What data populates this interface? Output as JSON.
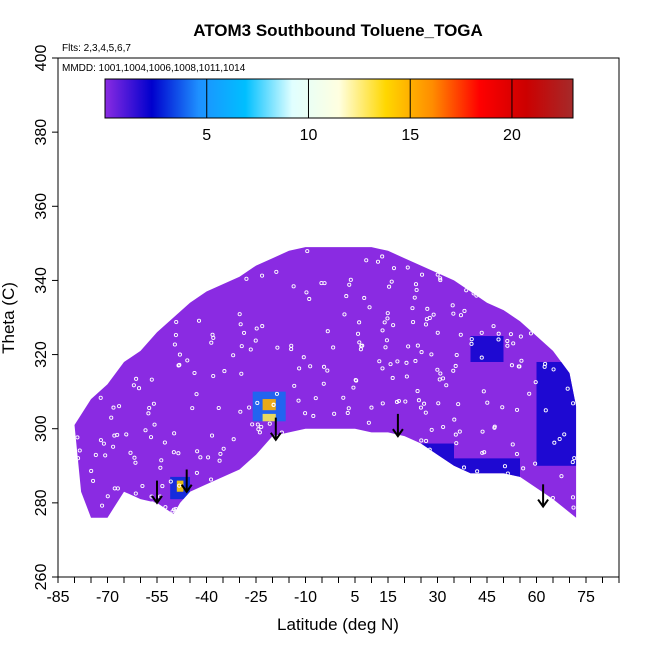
{
  "chart_data": {
    "type": "heatmap",
    "title": "ATOM3 Southbound Toluene_TOGA",
    "annotations": [
      "Flts: 2,3,4,5,6,7",
      "MMDD: 1001,1004,1006,1008,1011,1014"
    ],
    "xlabel": "Latitude (deg N)",
    "ylabel": "Theta (C)",
    "xlim": [
      -85,
      85
    ],
    "ylim": [
      260,
      400
    ],
    "x_tick_labels": [
      "-85",
      "-70",
      "-55",
      "-40",
      "-25",
      "-10",
      "5",
      "15",
      "30",
      "45",
      "60",
      "75"
    ],
    "y_tick_labels": [
      "260",
      "280",
      "300",
      "320",
      "340",
      "360",
      "380",
      "400"
    ],
    "colorbar": {
      "range": [
        0,
        23
      ],
      "tick_labels": [
        "5",
        "10",
        "15",
        "20"
      ],
      "placement": "top inside plot",
      "colors": [
        "#8a2be2",
        "#0000cd",
        "#1e90ff",
        "#00bfff",
        "#e0ffff",
        "#ffffe0",
        "#ffd700",
        "#ff8c00",
        "#ff0000",
        "#cc0000",
        "#a52a2a"
      ]
    },
    "background_color": "#8a2be2",
    "data_region": {
      "top_boundary": [
        [
          -80,
          301
        ],
        [
          -75,
          308
        ],
        [
          -70,
          312
        ],
        [
          -65,
          318
        ],
        [
          -60,
          321
        ],
        [
          -55,
          326
        ],
        [
          -50,
          330
        ],
        [
          -45,
          334
        ],
        [
          -40,
          337
        ],
        [
          -35,
          339
        ],
        [
          -30,
          341
        ],
        [
          -25,
          344
        ],
        [
          -20,
          346
        ],
        [
          -15,
          348
        ],
        [
          -10,
          349
        ],
        [
          0,
          349
        ],
        [
          10,
          349
        ],
        [
          15,
          348
        ],
        [
          20,
          346
        ],
        [
          25,
          344
        ],
        [
          30,
          342
        ],
        [
          35,
          340
        ],
        [
          40,
          337
        ],
        [
          45,
          334
        ],
        [
          50,
          332
        ],
        [
          55,
          329
        ],
        [
          60,
          325
        ],
        [
          65,
          321
        ],
        [
          70,
          315
        ],
        [
          72,
          306
        ]
      ],
      "bottom_boundary": [
        [
          72,
          276
        ],
        [
          65,
          281
        ],
        [
          60,
          284
        ],
        [
          55,
          287
        ],
        [
          50,
          288
        ],
        [
          45,
          288
        ],
        [
          40,
          288
        ],
        [
          35,
          290
        ],
        [
          30,
          293
        ],
        [
          25,
          296
        ],
        [
          20,
          298
        ],
        [
          15,
          299
        ],
        [
          10,
          299
        ],
        [
          5,
          300
        ],
        [
          0,
          300
        ],
        [
          -10,
          300
        ],
        [
          -15,
          299
        ],
        [
          -20,
          298
        ],
        [
          -25,
          293
        ],
        [
          -30,
          289
        ],
        [
          -35,
          287
        ],
        [
          -40,
          285
        ],
        [
          -45,
          283
        ],
        [
          -48,
          280
        ],
        [
          -50,
          277
        ],
        [
          -55,
          280
        ],
        [
          -60,
          281
        ],
        [
          -65,
          283
        ],
        [
          -70,
          276
        ],
        [
          -75,
          276
        ],
        [
          -78,
          283
        ],
        [
          -80,
          301
        ]
      ]
    },
    "high_value_patches": [
      {
        "lat_min": -26,
        "lat_max": -16,
        "theta_min": 302,
        "theta_max": 310,
        "value": 4
      },
      {
        "lat_min": -23,
        "lat_max": -19,
        "theta_min": 305,
        "theta_max": 308,
        "value": 15
      },
      {
        "lat_min": -23,
        "lat_max": -19,
        "theta_min": 302,
        "theta_max": 304,
        "value": 13
      },
      {
        "lat_min": -51,
        "lat_max": -45,
        "theta_min": 281,
        "theta_max": 287,
        "value": 3
      },
      {
        "lat_min": -49,
        "lat_max": -47,
        "theta_min": 283,
        "theta_max": 286,
        "value": 14
      },
      {
        "lat_min": 25,
        "lat_max": 35,
        "theta_min": 287,
        "theta_max": 296,
        "value": 2
      },
      {
        "lat_min": 35,
        "lat_max": 55,
        "theta_min": 280,
        "theta_max": 292,
        "value": 2
      },
      {
        "lat_min": 40,
        "lat_max": 50,
        "theta_min": 318,
        "theta_max": 325,
        "value": 2
      },
      {
        "lat_min": 60,
        "lat_max": 72,
        "theta_min": 290,
        "theta_max": 318,
        "value": 2
      }
    ],
    "arrows": [
      {
        "lat": -55,
        "theta_from": 286,
        "theta_to": 280
      },
      {
        "lat": -46,
        "theta_from": 289,
        "theta_to": 283
      },
      {
        "lat": -19,
        "theta_from": 303,
        "theta_to": 297
      },
      {
        "lat": 18,
        "theta_from": 304,
        "theta_to": 298
      },
      {
        "lat": 62,
        "theta_from": 285,
        "theta_to": 279
      }
    ],
    "sample_point_color": "#ffffff",
    "grid": false,
    "legend": "colorbar top"
  }
}
